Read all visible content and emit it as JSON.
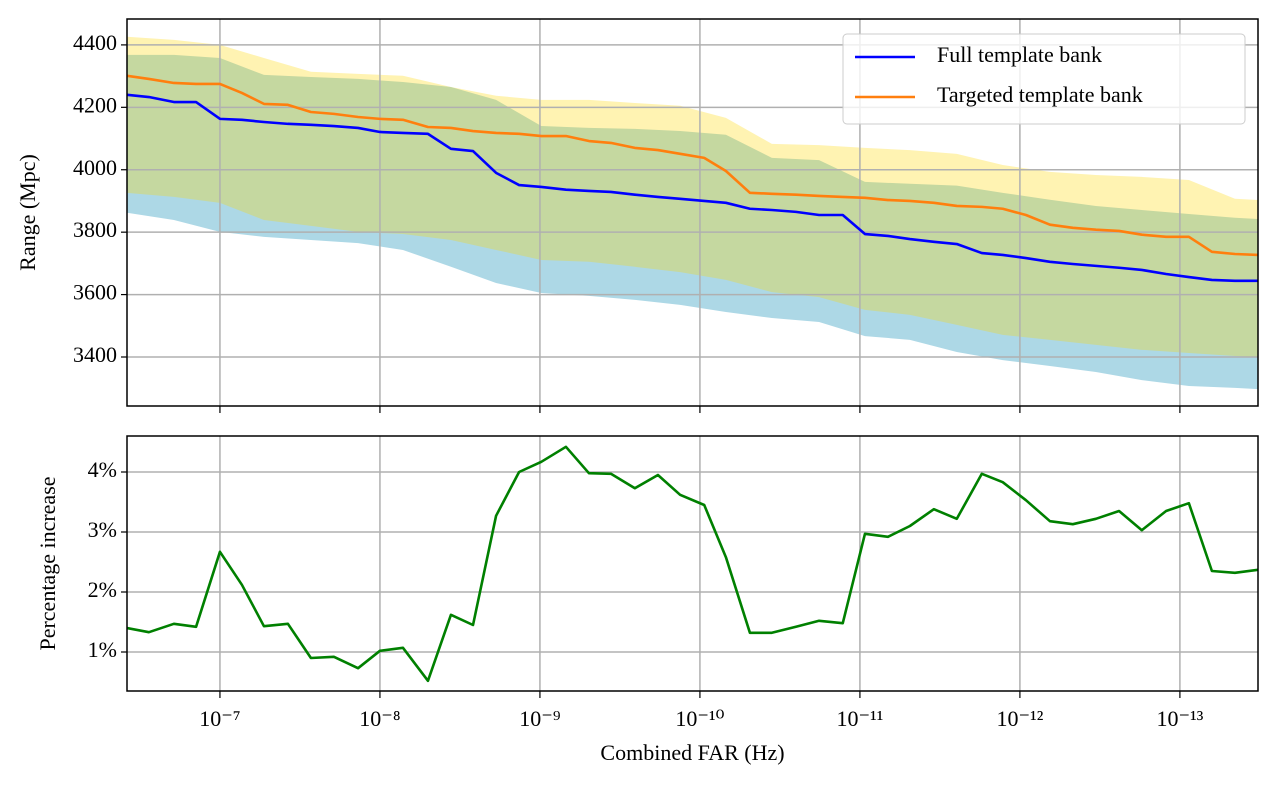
{
  "chart_data": [
    {
      "type": "line",
      "ylabel": "Range (Mpc)",
      "xscale": "log",
      "xlim": [
        3.81e-07,
        3.25e-14
      ],
      "xticks": [
        1e-07,
        1e-08,
        1e-09,
        1e-10,
        1e-11,
        1e-12,
        1e-13
      ],
      "ylim": [
        3243,
        4483
      ],
      "yticks": [
        3400,
        3600,
        3800,
        4000,
        4200,
        4400
      ],
      "grid": true,
      "legend": "upper right",
      "x": [
        3.81e-07,
        2.78e-07,
        1.94e-07,
        1.41e-07,
        1e-07,
        7.29e-08,
        5.31e-08,
        3.76e-08,
        2.7e-08,
        1.94e-08,
        1.37e-08,
        1e-08,
        7.18e-09,
        5.01e-09,
        3.6e-09,
        2.62e-09,
        1.88e-09,
        1.35e-09,
        9.8e-10,
        6.88e-10,
        4.94e-10,
        3.6e-10,
        2.55e-10,
        1.83e-10,
        1.33e-10,
        9.4e-11,
        6.88e-11,
        4.87e-11,
        3.55e-11,
        2.51e-11,
        1.8e-11,
        1.28e-11,
        9.3e-12,
        6.68e-12,
        4.87e-12,
        3.45e-12,
        2.48e-12,
        1.73e-12,
        1.28e-12,
        9.17e-13,
        6.49e-13,
        4.67e-13,
        3.35e-13,
        2.4e-13,
        1.73e-13,
        1.22e-13,
        8.79e-14,
        6.31e-14,
        4.53e-14,
        3.25e-14
      ],
      "bands": [
        {
          "color": "#add8e6",
          "opacity": 1,
          "x": [
            3.81e-07,
            1.94e-07,
            1e-07,
            5.31e-08,
            2.7e-08,
            1.37e-08,
            7.18e-09,
            3.6e-09,
            1.88e-09,
            9.8e-10,
            4.94e-10,
            2.55e-10,
            1.33e-10,
            6.88e-11,
            3.55e-11,
            1.8e-11,
            9.3e-12,
            4.87e-12,
            2.48e-12,
            1.28e-12,
            6.49e-13,
            3.35e-13,
            1.73e-13,
            8.79e-14,
            4.53e-14,
            3.25e-14
          ],
          "lower": [
            3862,
            3839,
            3801,
            3785,
            3775,
            3765,
            3743,
            3689,
            3637,
            3605,
            3596,
            3583,
            3567,
            3544,
            3525,
            3512,
            3467,
            3455,
            3416,
            3390,
            3371,
            3352,
            3326,
            3307,
            3301,
            3297
          ],
          "upper": [
            4368,
            4368,
            4358,
            4304,
            4297,
            4291,
            4281,
            4265,
            4224,
            4140,
            4134,
            4131,
            4124,
            4112,
            4038,
            4031,
            3961,
            3955,
            3949,
            3926,
            3904,
            3884,
            3871,
            3858,
            3846,
            3842
          ]
        },
        {
          "color": "#ffd700",
          "opacity": 0.3,
          "x": [
            3.81e-07,
            1.94e-07,
            1e-07,
            5.31e-08,
            2.7e-08,
            1.37e-08,
            7.18e-09,
            3.6e-09,
            1.88e-09,
            9.8e-10,
            4.94e-10,
            2.55e-10,
            1.33e-10,
            6.88e-11,
            3.55e-11,
            1.8e-11,
            9.3e-12,
            4.87e-12,
            2.48e-12,
            1.28e-12,
            6.49e-13,
            3.35e-13,
            1.73e-13,
            8.79e-14,
            4.53e-14,
            3.25e-14
          ],
          "lower": [
            3926,
            3913,
            3894,
            3839,
            3820,
            3801,
            3794,
            3775,
            3743,
            3711,
            3705,
            3689,
            3672,
            3647,
            3608,
            3592,
            3551,
            3535,
            3503,
            3471,
            3455,
            3439,
            3423,
            3413,
            3403,
            3400
          ],
          "upper": [
            4426,
            4416,
            4400,
            4358,
            4314,
            4307,
            4301,
            4265,
            4237,
            4224,
            4224,
            4214,
            4205,
            4166,
            4083,
            4079,
            4070,
            4063,
            4051,
            4015,
            3993,
            3983,
            3977,
            3967,
            3907,
            3903
          ]
        }
      ],
      "series": [
        {
          "name": "Full template bank",
          "color": "#0000ff",
          "values": [
            4240,
            4233,
            4217,
            4217,
            4163,
            4160,
            4153,
            4147,
            4144,
            4140,
            4134,
            4121,
            4118,
            4115,
            4067,
            4060,
            3990,
            3951,
            3945,
            3936,
            3932,
            3929,
            3920,
            3913,
            3907,
            3900,
            3894,
            3875,
            3871,
            3865,
            3855,
            3855,
            3794,
            3788,
            3778,
            3769,
            3762,
            3733,
            3727,
            3717,
            3705,
            3698,
            3692,
            3686,
            3679,
            3666,
            3656,
            3647,
            3644,
            3644
          ]
        },
        {
          "name": "Targeted template bank",
          "color": "#ff7f0e",
          "values": [
            4301,
            4291,
            4278,
            4275,
            4275,
            4246,
            4211,
            4208,
            4185,
            4179,
            4169,
            4163,
            4160,
            4137,
            4134,
            4124,
            4118,
            4115,
            4108,
            4108,
            4092,
            4086,
            4070,
            4063,
            4051,
            4038,
            3996,
            3926,
            3923,
            3920,
            3916,
            3913,
            3910,
            3903,
            3900,
            3894,
            3884,
            3881,
            3875,
            3855,
            3824,
            3814,
            3808,
            3804,
            3792,
            3785,
            3785,
            3737,
            3730,
            3727
          ]
        }
      ]
    },
    {
      "type": "line",
      "ylabel": "Percentage increase",
      "xlabel": "Combined FAR (Hz)",
      "xscale": "log",
      "xlim": [
        3.81e-07,
        3.25e-14
      ],
      "xticks": [
        {
          "value": 1e-07,
          "label": "10⁻⁷"
        },
        {
          "value": 1e-08,
          "label": "10⁻⁸"
        },
        {
          "value": 1e-09,
          "label": "10⁻⁹"
        },
        {
          "value": 1e-10,
          "label": "10⁻¹⁰"
        },
        {
          "value": 1e-11,
          "label": "10⁻¹¹"
        },
        {
          "value": 1e-12,
          "label": "10⁻¹²"
        },
        {
          "value": 1e-13,
          "label": "10⁻¹³"
        }
      ],
      "ylim": [
        0.35,
        4.6
      ],
      "yticks": [
        {
          "value": 1,
          "label": "1%"
        },
        {
          "value": 2,
          "label": "2%"
        },
        {
          "value": 3,
          "label": "3%"
        },
        {
          "value": 4,
          "label": "4%"
        }
      ],
      "grid": true,
      "x": [
        3.81e-07,
        2.78e-07,
        1.94e-07,
        1.41e-07,
        1e-07,
        7.29e-08,
        5.31e-08,
        3.76e-08,
        2.7e-08,
        1.94e-08,
        1.37e-08,
        1e-08,
        7.18e-09,
        5.01e-09,
        3.6e-09,
        2.62e-09,
        1.88e-09,
        1.35e-09,
        9.8e-10,
        6.88e-10,
        4.94e-10,
        3.6e-10,
        2.55e-10,
        1.83e-10,
        1.33e-10,
        9.4e-11,
        6.88e-11,
        4.87e-11,
        3.55e-11,
        2.51e-11,
        1.8e-11,
        1.28e-11,
        9.3e-12,
        6.68e-12,
        4.87e-12,
        3.45e-12,
        2.48e-12,
        1.73e-12,
        1.28e-12,
        9.17e-13,
        6.49e-13,
        4.67e-13,
        3.35e-13,
        2.4e-13,
        1.73e-13,
        1.22e-13,
        8.79e-14,
        6.31e-14,
        4.53e-14,
        3.25e-14
      ],
      "series": [
        {
          "color": "#008000",
          "values": [
            1.4,
            1.33,
            1.47,
            1.42,
            2.67,
            2.12,
            1.43,
            1.47,
            0.9,
            0.92,
            0.73,
            1.02,
            1.07,
            0.52,
            1.62,
            1.45,
            3.27,
            4.0,
            4.17,
            4.42,
            3.98,
            3.97,
            3.73,
            3.95,
            3.62,
            3.45,
            2.58,
            1.32,
            1.32,
            1.42,
            1.52,
            1.48,
            2.97,
            2.92,
            3.1,
            3.38,
            3.22,
            3.97,
            3.83,
            3.53,
            3.18,
            3.13,
            3.22,
            3.35,
            3.03,
            3.35,
            3.48,
            2.35,
            2.32,
            2.37
          ]
        }
      ]
    }
  ]
}
